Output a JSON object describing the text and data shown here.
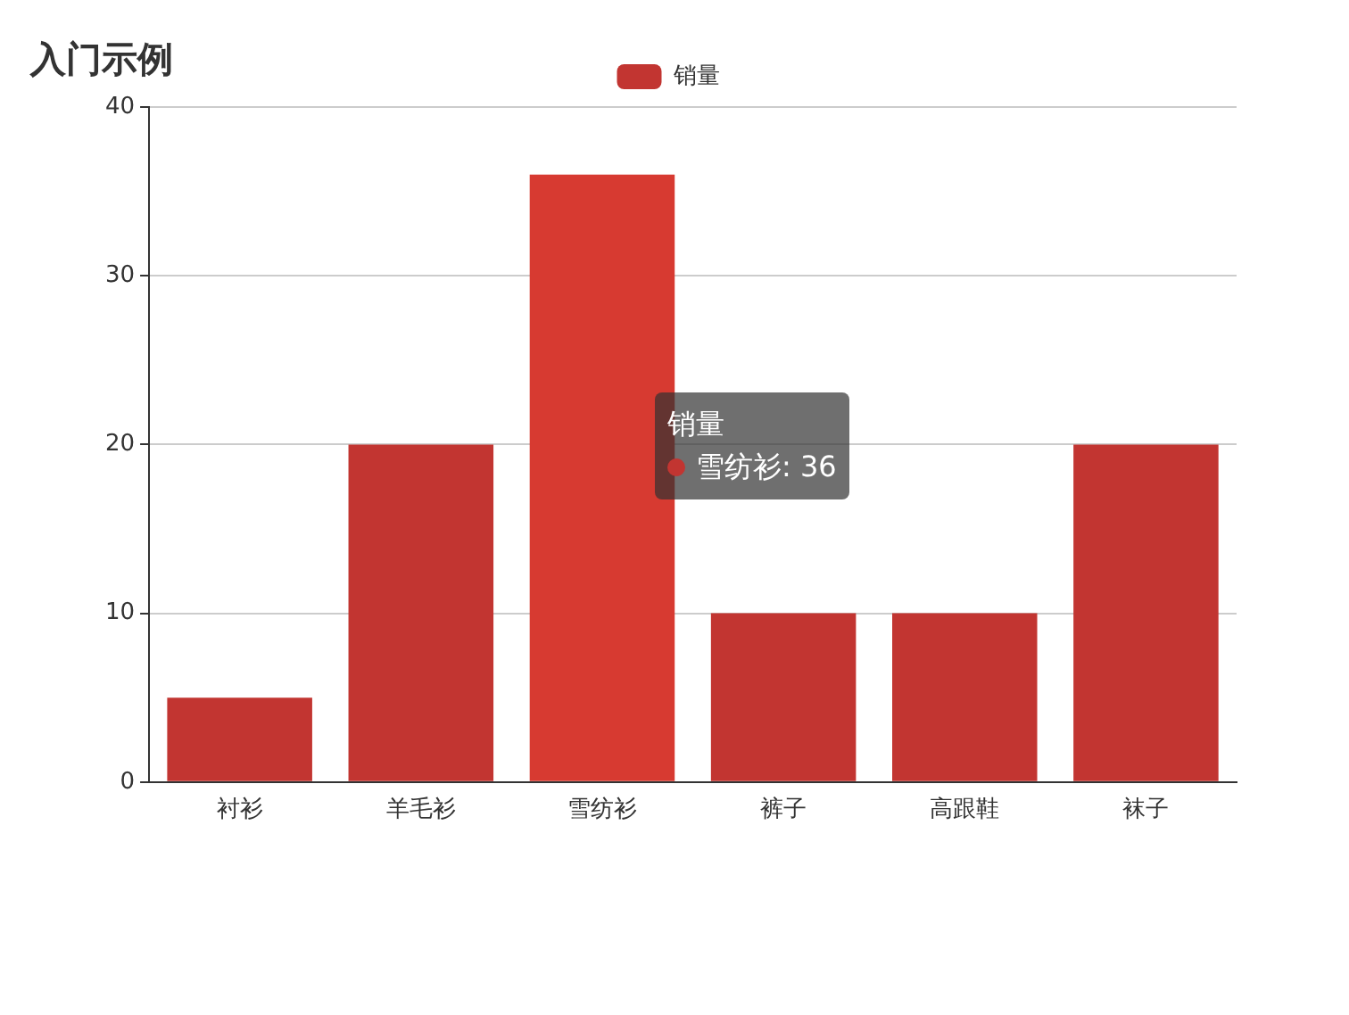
{
  "chart_data": {
    "type": "bar",
    "title": "入门示例",
    "categories": [
      "衬衫",
      "羊毛衫",
      "雪纺衫",
      "裤子",
      "高跟鞋",
      "袜子"
    ],
    "series": [
      {
        "name": "销量",
        "color": "#c23531",
        "colors": [
          "#c23531",
          "#c23531",
          "#d73a31",
          "#c23531",
          "#c23531",
          "#c23531"
        ],
        "values": [
          5,
          20,
          36,
          10,
          10,
          20
        ]
      }
    ],
    "ylim": [
      0,
      40
    ],
    "yticks": [
      0,
      10,
      20,
      30,
      40
    ],
    "grid": "y",
    "legend": "top",
    "annotations": [
      "雪纺衫: 36"
    ]
  }
}
